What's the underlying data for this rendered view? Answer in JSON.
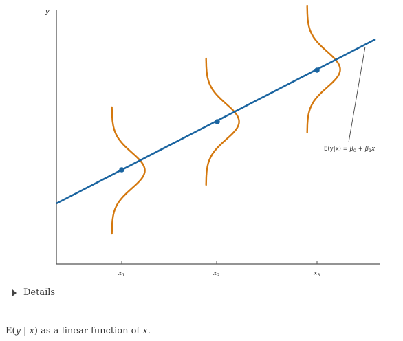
{
  "figure": {
    "y_axis_label": "y",
    "x_ticks": [
      {
        "letter": "x",
        "sub": "1"
      },
      {
        "letter": "x",
        "sub": "2"
      },
      {
        "letter": "x",
        "sub": "3"
      }
    ],
    "equation": {
      "lhs": "E(y|x) = ",
      "b0": "β",
      "b0_sub": "0",
      "plus": " + ",
      "b1": "β",
      "b1_sub": "1",
      "x": "x"
    },
    "colors": {
      "regression_line": "#1a64a0",
      "distribution_curve": "#d4780e",
      "axis": "#555555",
      "leader_line": "#444444"
    }
  },
  "details": {
    "label": "Details",
    "icon": "triangle-right-icon"
  },
  "caption": {
    "prefix": "E(",
    "y": "y",
    "sep": " | ",
    "x": "x",
    "mid": ") as a linear function of ",
    "x2": "x",
    "end": "."
  }
}
